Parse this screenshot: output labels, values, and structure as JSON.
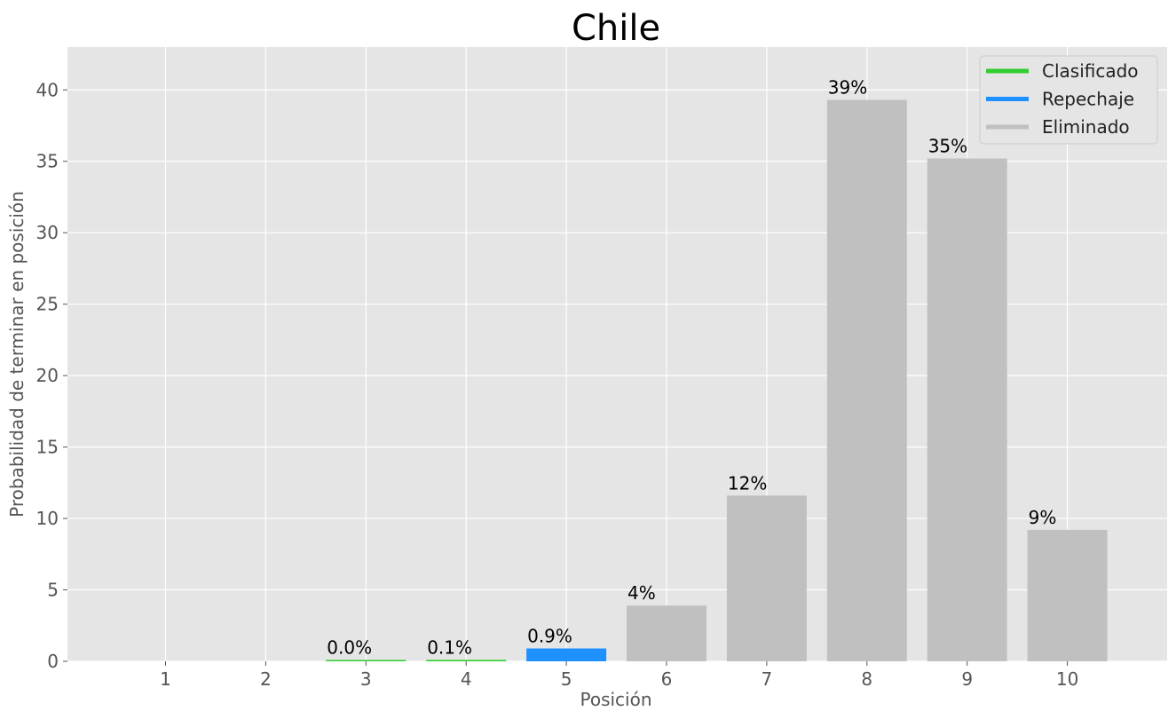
{
  "chart_data": {
    "type": "bar",
    "title": "Chile",
    "xlabel": "Posición",
    "ylabel": "Probabilidad de terminar en posición",
    "categories": [
      "1",
      "2",
      "3",
      "4",
      "5",
      "6",
      "7",
      "8",
      "9",
      "10"
    ],
    "values": [
      0,
      0,
      0.03,
      0.1,
      0.9,
      3.9,
      11.6,
      39.3,
      35.2,
      9.2
    ],
    "labels": [
      "",
      "",
      "0.0%",
      "0.1%",
      "0.9%",
      "4%",
      "12%",
      "39%",
      "35%",
      "9%"
    ],
    "status": [
      "Clasificado",
      "Clasificado",
      "Clasificado",
      "Clasificado",
      "Repechaje",
      "Eliminado",
      "Eliminado",
      "Eliminado",
      "Eliminado",
      "Eliminado"
    ],
    "ylim": [
      0,
      43
    ],
    "yticks": [
      0,
      5,
      10,
      15,
      20,
      25,
      30,
      35,
      40
    ],
    "grid": true,
    "legend_position": "top-right",
    "legend": [
      {
        "name": "Clasificado",
        "color": "#32cd32"
      },
      {
        "name": "Repechaje",
        "color": "#1e90ff"
      },
      {
        "name": "Eliminado",
        "color": "#c0c0c0"
      }
    ]
  }
}
